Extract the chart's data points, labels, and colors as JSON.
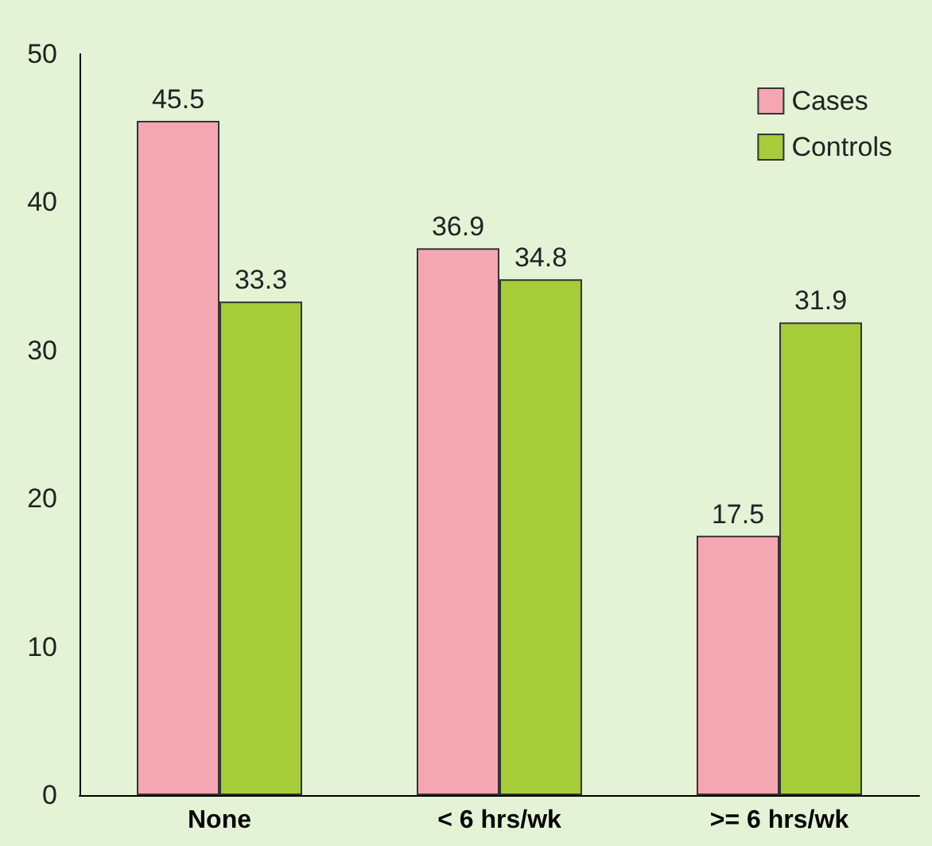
{
  "chart_data": {
    "type": "bar",
    "categories": [
      "None",
      "< 6 hrs/wk",
      ">= 6 hrs/wk"
    ],
    "series": [
      {
        "name": "Cases",
        "color": "#f4a7b2",
        "values": [
          45.5,
          36.9,
          17.5
        ]
      },
      {
        "name": "Controls",
        "color": "#a6cc3a",
        "values": [
          33.3,
          34.8,
          31.9
        ]
      }
    ],
    "ylim": [
      0,
      50
    ],
    "yticks": [
      0,
      10,
      20,
      30,
      40,
      50
    ],
    "grid": false,
    "legend": "top right",
    "data_labels": true
  }
}
